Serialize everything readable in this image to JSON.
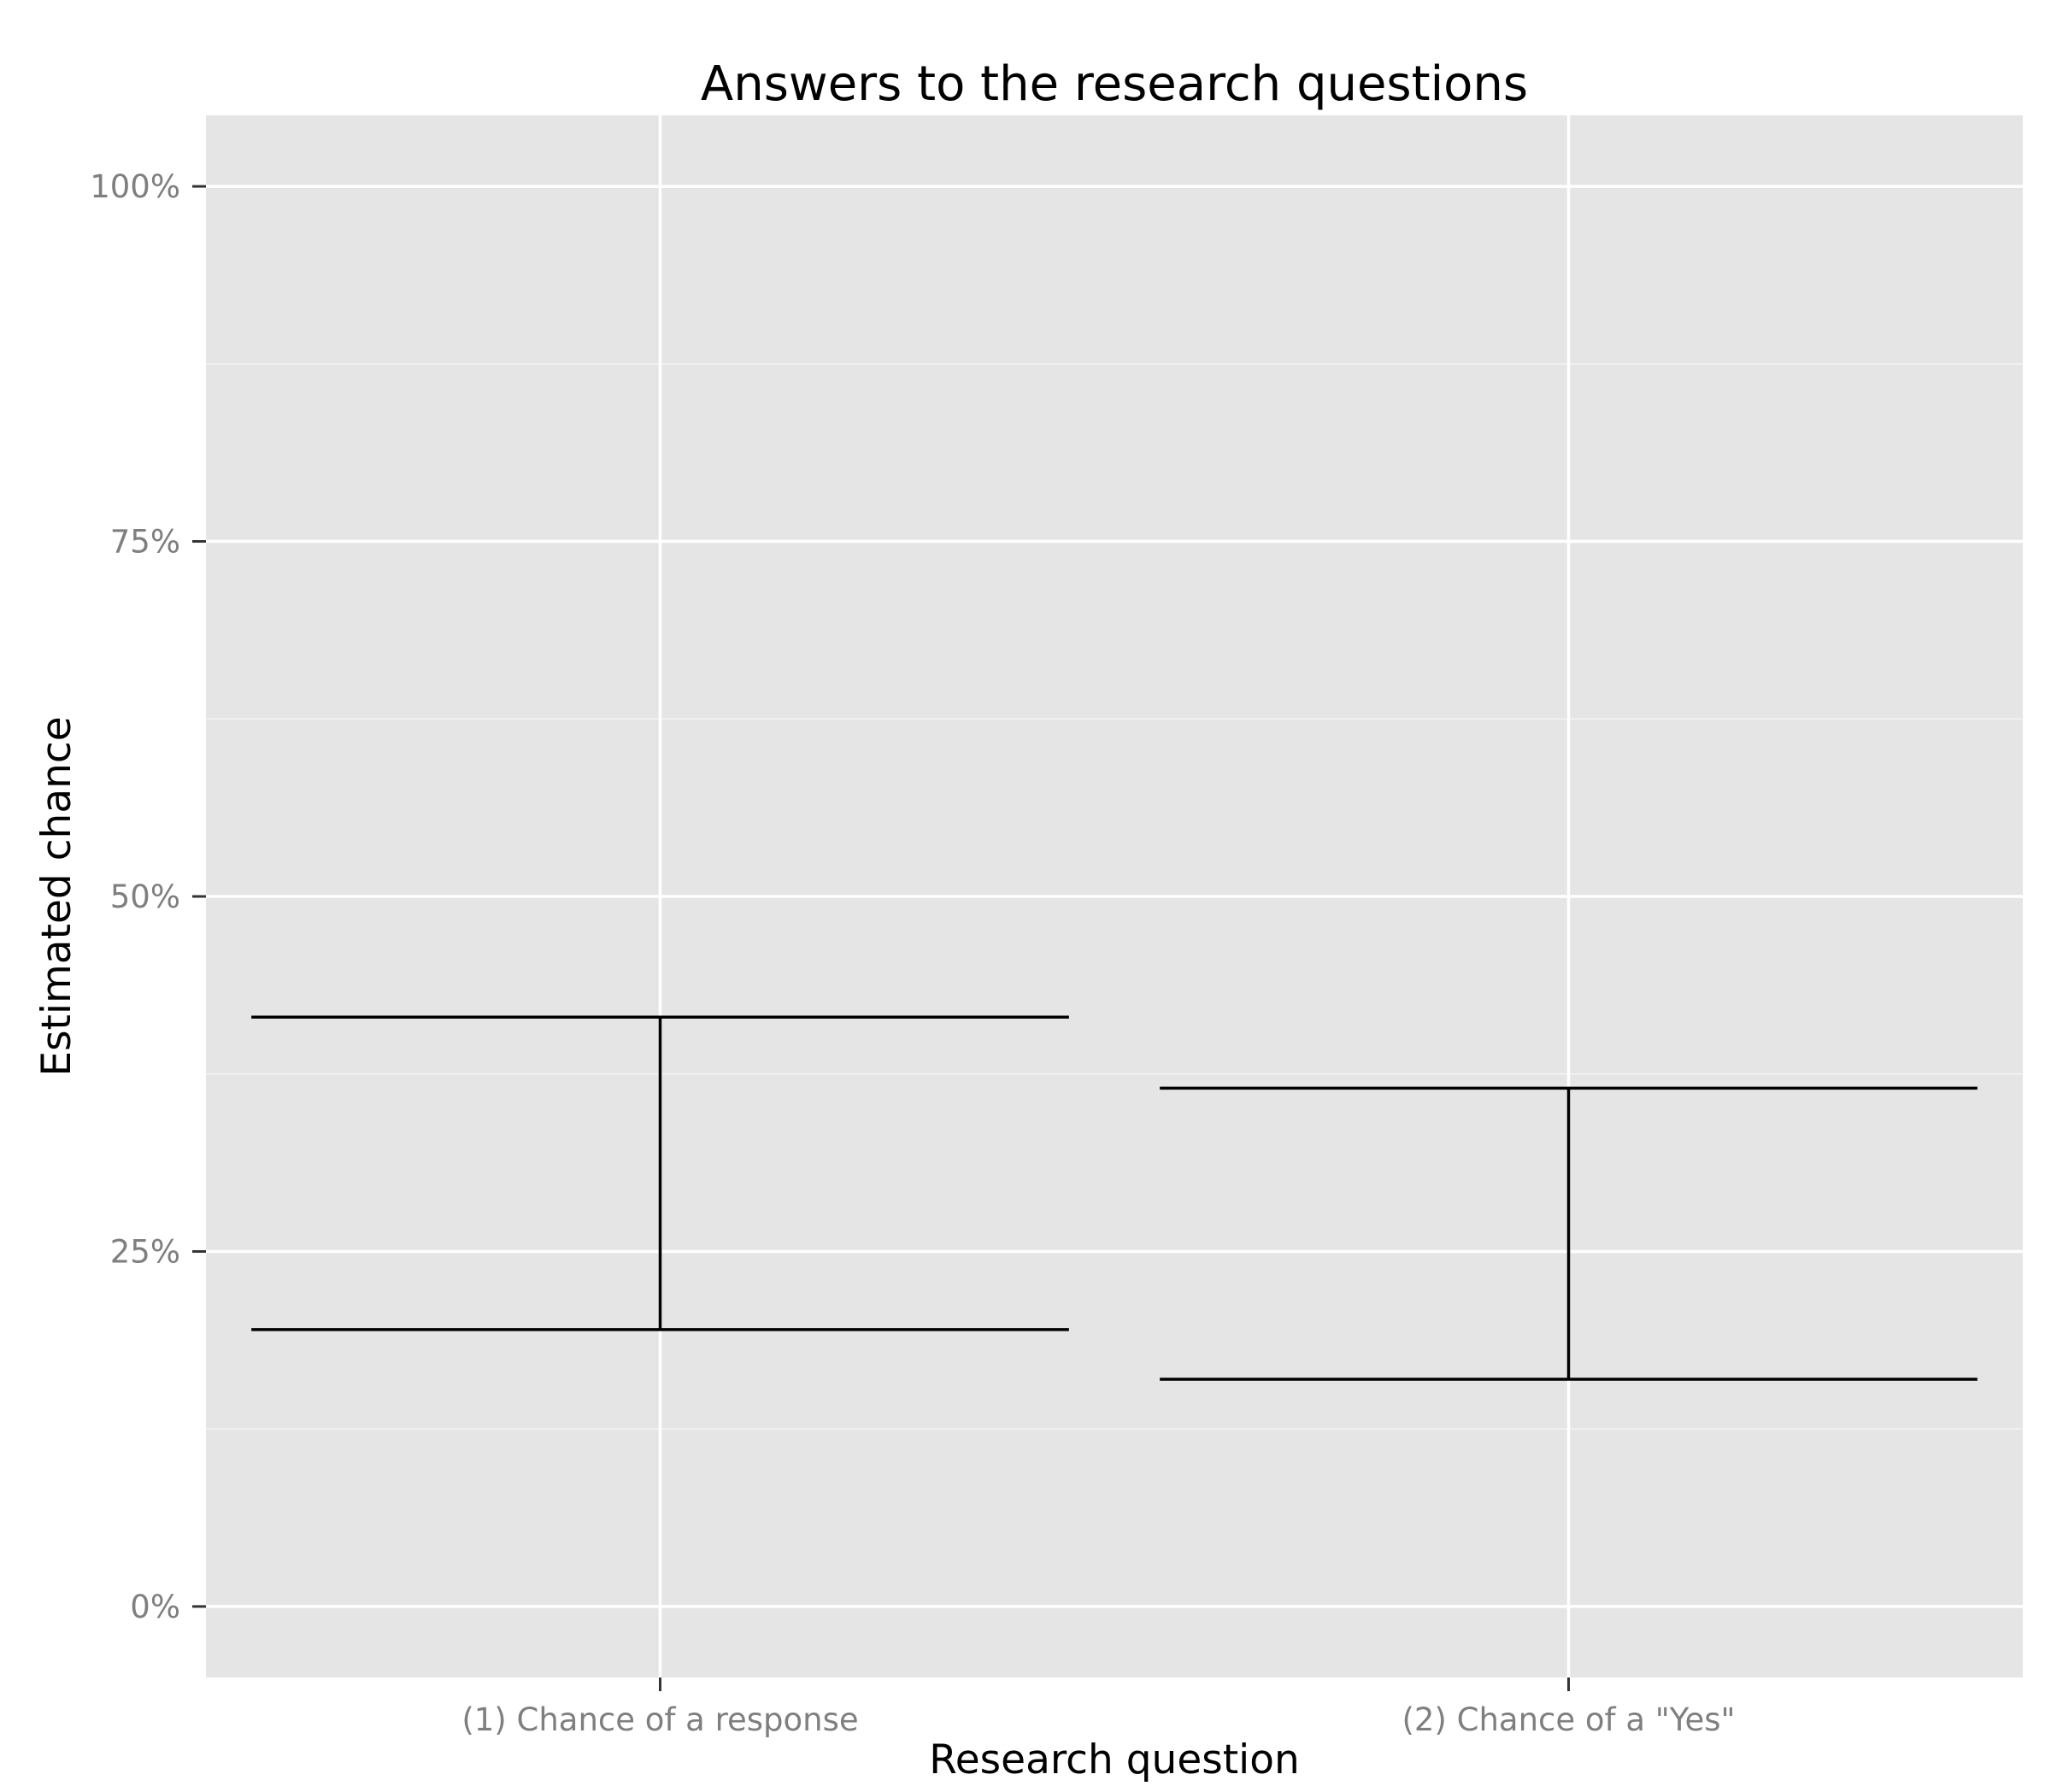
{
  "chart_data": {
    "type": "errorbar",
    "title": "Answers to the research questions",
    "xlabel": "Research question",
    "ylabel": "Estimated chance",
    "categories": [
      "(1) Chance of a response",
      "(2) Chance of a \"Yes\""
    ],
    "intervals": [
      {
        "category": "(1) Chance of a response",
        "lower": 0.195,
        "upper": 0.415
      },
      {
        "category": "(2) Chance of a \"Yes\"",
        "lower": 0.16,
        "upper": 0.365
      }
    ],
    "y_ticks": [
      0,
      0.25,
      0.5,
      0.75,
      1.0
    ],
    "y_tick_labels": [
      "0%",
      "25%",
      "50%",
      "75%",
      "100%"
    ],
    "ylim": [
      -0.05,
      1.05
    ],
    "grid": true,
    "colors": {
      "panel": "#e5e5e5",
      "grid": "#ffffff",
      "bars": "#000000"
    }
  }
}
